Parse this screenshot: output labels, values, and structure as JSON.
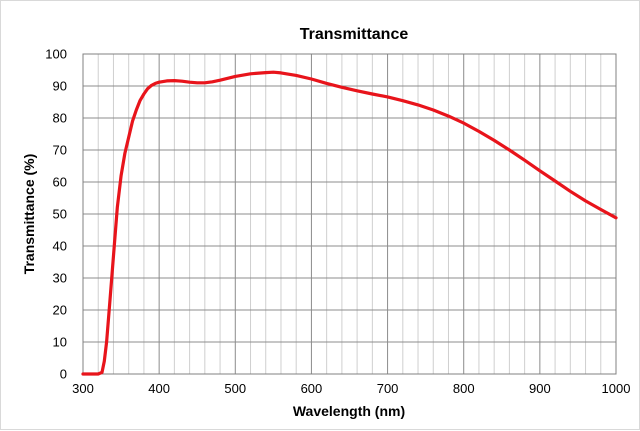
{
  "chart_data": {
    "type": "line",
    "title": "Transmittance",
    "xlabel": "Wavelength (nm)",
    "ylabel": "Transmittance (%)",
    "xlim": [
      300,
      1000
    ],
    "ylim": [
      0,
      100
    ],
    "x_ticks": [
      300,
      400,
      500,
      600,
      700,
      800,
      900,
      1000
    ],
    "y_ticks": [
      0,
      10,
      20,
      30,
      40,
      50,
      60,
      70,
      80,
      90,
      100
    ],
    "x_minor_step": 20,
    "grid": true,
    "legend": "none",
    "series": [
      {
        "color": "#e8141b",
        "x": [
          300,
          320,
          325,
          328,
          331,
          335,
          340,
          345,
          350,
          355,
          360,
          365,
          370,
          375,
          380,
          385,
          390,
          395,
          400,
          410,
          420,
          430,
          440,
          450,
          460,
          470,
          480,
          490,
          500,
          520,
          540,
          550,
          560,
          580,
          600,
          620,
          640,
          660,
          680,
          700,
          720,
          740,
          760,
          780,
          800,
          820,
          840,
          860,
          880,
          900,
          920,
          940,
          960,
          980,
          1000
        ],
        "y": [
          0,
          0,
          0.5,
          4,
          10,
          22,
          37,
          52,
          62,
          69,
          74,
          79,
          82.5,
          85.5,
          87.5,
          89.2,
          90.2,
          90.8,
          91.2,
          91.6,
          91.7,
          91.5,
          91.2,
          91,
          91,
          91.3,
          91.8,
          92.4,
          93,
          93.8,
          94.2,
          94.3,
          94.1,
          93.3,
          92.2,
          90.8,
          89.6,
          88.5,
          87.5,
          86.6,
          85.4,
          84.1,
          82.5,
          80.6,
          78.4,
          75.8,
          73,
          70,
          66.8,
          63.5,
          60.3,
          57.1,
          54.1,
          51.4,
          48.8
        ]
      }
    ]
  }
}
